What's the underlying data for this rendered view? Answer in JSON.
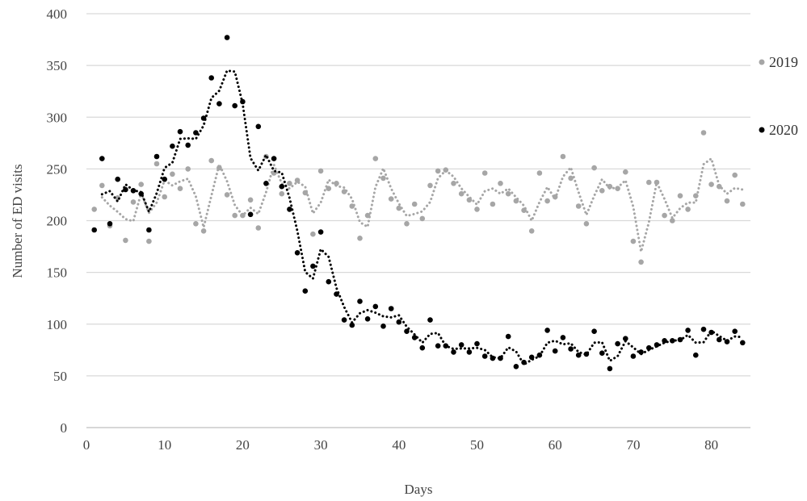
{
  "chart_data": {
    "type": "scatter",
    "title": "",
    "xlabel": "Days",
    "ylabel": "Number of ED visits",
    "xlim": [
      0,
      85
    ],
    "ylim": [
      0,
      400
    ],
    "x_ticks": [
      0,
      10,
      20,
      30,
      40,
      50,
      60,
      70,
      80
    ],
    "y_ticks": [
      0,
      50,
      100,
      150,
      200,
      250,
      300,
      350,
      400
    ],
    "grid": "horizontal",
    "legend_position": "right",
    "trendline": "dotted moving average (period 2)",
    "series": [
      {
        "name": "2019",
        "color": "#a6a6a6",
        "x": [
          1,
          2,
          3,
          4,
          5,
          6,
          7,
          8,
          9,
          10,
          11,
          12,
          13,
          14,
          15,
          16,
          17,
          18,
          19,
          20,
          21,
          22,
          23,
          24,
          25,
          26,
          27,
          28,
          29,
          30,
          31,
          32,
          33,
          34,
          35,
          36,
          37,
          38,
          39,
          40,
          41,
          42,
          43,
          44,
          45,
          46,
          47,
          48,
          49,
          50,
          51,
          52,
          53,
          54,
          55,
          56,
          57,
          58,
          59,
          60,
          61,
          62,
          63,
          64,
          65,
          66,
          67,
          68,
          69,
          70,
          71,
          72,
          73,
          74,
          75,
          76,
          77,
          78,
          79,
          80,
          81,
          82,
          83,
          84
        ],
        "y": [
          211,
          234,
          195,
          222,
          181,
          218,
          235,
          180,
          255,
          223,
          245,
          231,
          250,
          197,
          190,
          258,
          251,
          225,
          205,
          205,
          220,
          193,
          262,
          246,
          226,
          236,
          239,
          227,
          187,
          248,
          231,
          236,
          228,
          214,
          183,
          205,
          260,
          241,
          221,
          212,
          197,
          216,
          202,
          234,
          248,
          249,
          236,
          226,
          220,
          211,
          246,
          216,
          236,
          226,
          219,
          210,
          190,
          246,
          219,
          223,
          262,
          241,
          214,
          197,
          251,
          229,
          233,
          231,
          247,
          180,
          160,
          237,
          237,
          205,
          200,
          224,
          211,
          224,
          285,
          235,
          233,
          219,
          244,
          216
        ]
      },
      {
        "name": "2020",
        "color": "#000000",
        "x": [
          1,
          2,
          3,
          4,
          5,
          6,
          7,
          8,
          9,
          10,
          11,
          12,
          13,
          14,
          15,
          16,
          17,
          18,
          19,
          20,
          21,
          22,
          23,
          24,
          25,
          26,
          27,
          28,
          29,
          30,
          31,
          32,
          33,
          34,
          35,
          36,
          37,
          38,
          39,
          40,
          41,
          42,
          43,
          44,
          45,
          46,
          47,
          48,
          49,
          50,
          51,
          52,
          53,
          54,
          55,
          56,
          57,
          58,
          59,
          60,
          61,
          62,
          63,
          64,
          65,
          66,
          67,
          68,
          69,
          70,
          71,
          72,
          73,
          74,
          75,
          76,
          77,
          78,
          79,
          80,
          81,
          82,
          83,
          84
        ],
        "y": [
          191,
          260,
          197,
          240,
          230,
          229,
          226,
          191,
          262,
          240,
          272,
          286,
          273,
          285,
          299,
          338,
          313,
          377,
          311,
          315,
          206,
          291,
          236,
          260,
          233,
          211,
          169,
          132,
          156,
          189,
          141,
          129,
          104,
          99,
          122,
          105,
          117,
          98,
          115,
          102,
          93,
          87,
          77,
          104,
          79,
          79,
          73,
          80,
          73,
          81,
          69,
          67,
          67,
          88,
          59,
          63,
          68,
          70,
          94,
          74,
          87,
          76,
          70,
          71,
          93,
          72,
          57,
          81,
          86,
          69,
          73,
          77,
          80,
          84,
          84,
          85,
          94,
          70,
          95,
          92,
          85,
          83,
          93,
          82
        ]
      }
    ]
  }
}
